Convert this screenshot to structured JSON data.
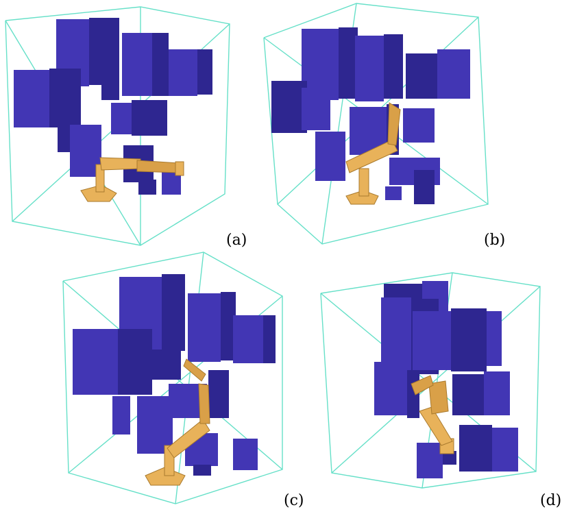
{
  "colors": {
    "background": "#ffffff",
    "frame": "#66e0c8",
    "box_front": "#4236b4",
    "box_side": "#2e2690",
    "box_top": "#5a4ed0",
    "robot": "#e8b25a",
    "robot_dark": "#a97a2e"
  },
  "panels": [
    {
      "id": "a",
      "label": "(a)"
    },
    {
      "id": "b",
      "label": "(b)"
    },
    {
      "id": "c",
      "label": "(c)"
    },
    {
      "id": "d",
      "label": "(d)"
    }
  ]
}
